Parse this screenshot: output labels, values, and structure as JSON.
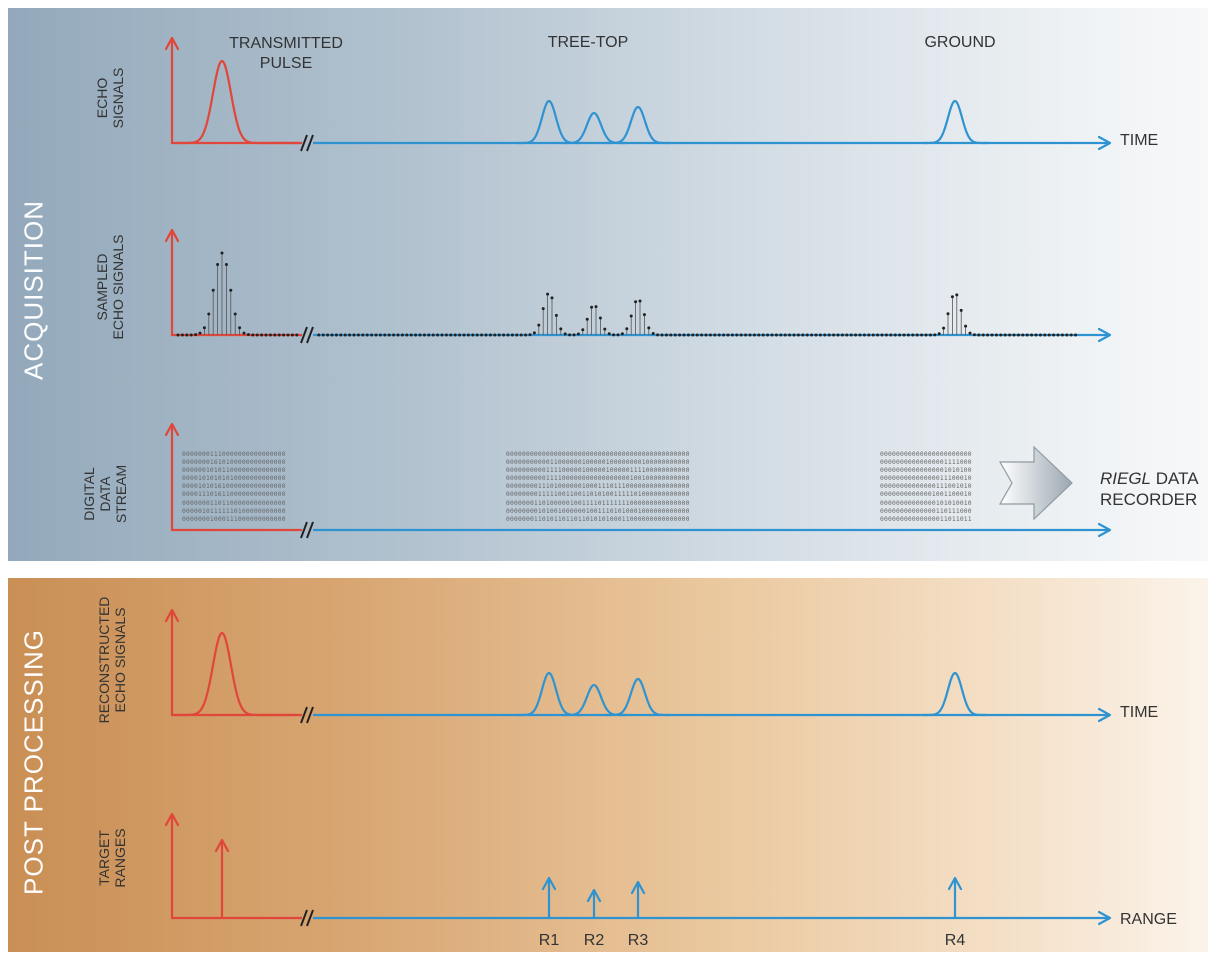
{
  "sections": {
    "acquisition": "ACQUISITION",
    "post_processing": "POST PROCESSING"
  },
  "rows": {
    "echo": "ECHO\nSIGNALS",
    "sampled": "SAMPLED\nECHO SIGNALS",
    "digital": "DIGITAL\nDATA\nSTREAM",
    "reconstructed": "RECONSTRUCTED\nECHO SIGNALS",
    "target": "TARGET\nRANGES"
  },
  "labels": {
    "transmitted": "TRANSMITTED\nPULSE",
    "treetop": "TREE-TOP",
    "ground": "GROUND",
    "time": "TIME",
    "time2": "TIME",
    "range": "RANGE",
    "r1": "R1",
    "r2": "R2",
    "r3": "R3",
    "r4": "R4"
  },
  "recorder": {
    "brand": "RIEGL",
    "line1_rest": " DATA",
    "line2": "RECORDER"
  },
  "bits": {
    "block1": "00000001110000000000000000\n00000001610100000000000000\n00000010101100000000000000\n00001010101010000000000000\n00001010161000000000000000\n00001110161100000000000000\n00000001101100000000000000\n00000101111110100000000000\n00000001000111000000000000",
    "block2": "0000000000000000000000000000000000000000000000\n0000000000011000000100000100000000100000000000\n0000000000111100000100000100000111100000000000\n0000000000111100000000000000000100100000000000\n0000000011101000000100011101110000000000000000\n0000000011111001100110101001111101000000000000\n0000000110100000100111101111111000000000000000\n0000000010100100000010011101010001000000000000\n0000000110101101101101010100011000000000000000",
    "block3": "00000000000000000000000\n00000000000000001111000\n00000000000000001010100\n00000000000000011100010\n00000000000000111001010\n00000000000001001100010\n00000000000000101010010\n00000000000000110111000\n00000000000000011011011"
  },
  "colors": {
    "red": "#e0463a",
    "blue": "#2f93d2"
  },
  "icons": [
    "arrow-right-icon",
    "axis-break-icon",
    "data-arrow-icon"
  ]
}
